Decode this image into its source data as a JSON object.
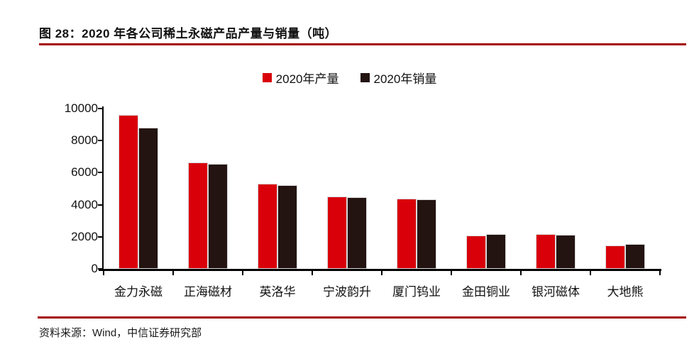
{
  "figure": {
    "title": "图 28：2020 年各公司稀土永磁产品产量与销量（吨）",
    "source": "资料来源：Wind，中信证券研究部"
  },
  "colors": {
    "accent_rule": "#a50000",
    "production_red": "#d9000a",
    "sales_black": "#231411",
    "axis": "#000000"
  },
  "chart_data": {
    "type": "bar",
    "title": "2020 年各公司稀土永磁产品产量与销量（吨）",
    "categories": [
      "金力永磁",
      "正海磁材",
      "英洛华",
      "宁波韵升",
      "厦门钨业",
      "金田铜业",
      "银河磁体",
      "大地熊"
    ],
    "series": [
      {
        "name": "2020年产量",
        "color": "#d9000a",
        "values": [
          9600,
          6650,
          5330,
          4530,
          4370,
          2100,
          2190,
          1480
        ]
      },
      {
        "name": "2020年销量",
        "color": "#231411",
        "values": [
          8800,
          6550,
          5230,
          4450,
          4330,
          2190,
          2140,
          1540
        ]
      }
    ],
    "xlabel": "",
    "ylabel": "",
    "ylim": [
      0,
      10000
    ],
    "ytick_step": 2000,
    "ytick_labels": [
      "0",
      "2000",
      "4000",
      "6000",
      "8000",
      "10000"
    ],
    "legend_position": "top-center",
    "grid": false
  }
}
